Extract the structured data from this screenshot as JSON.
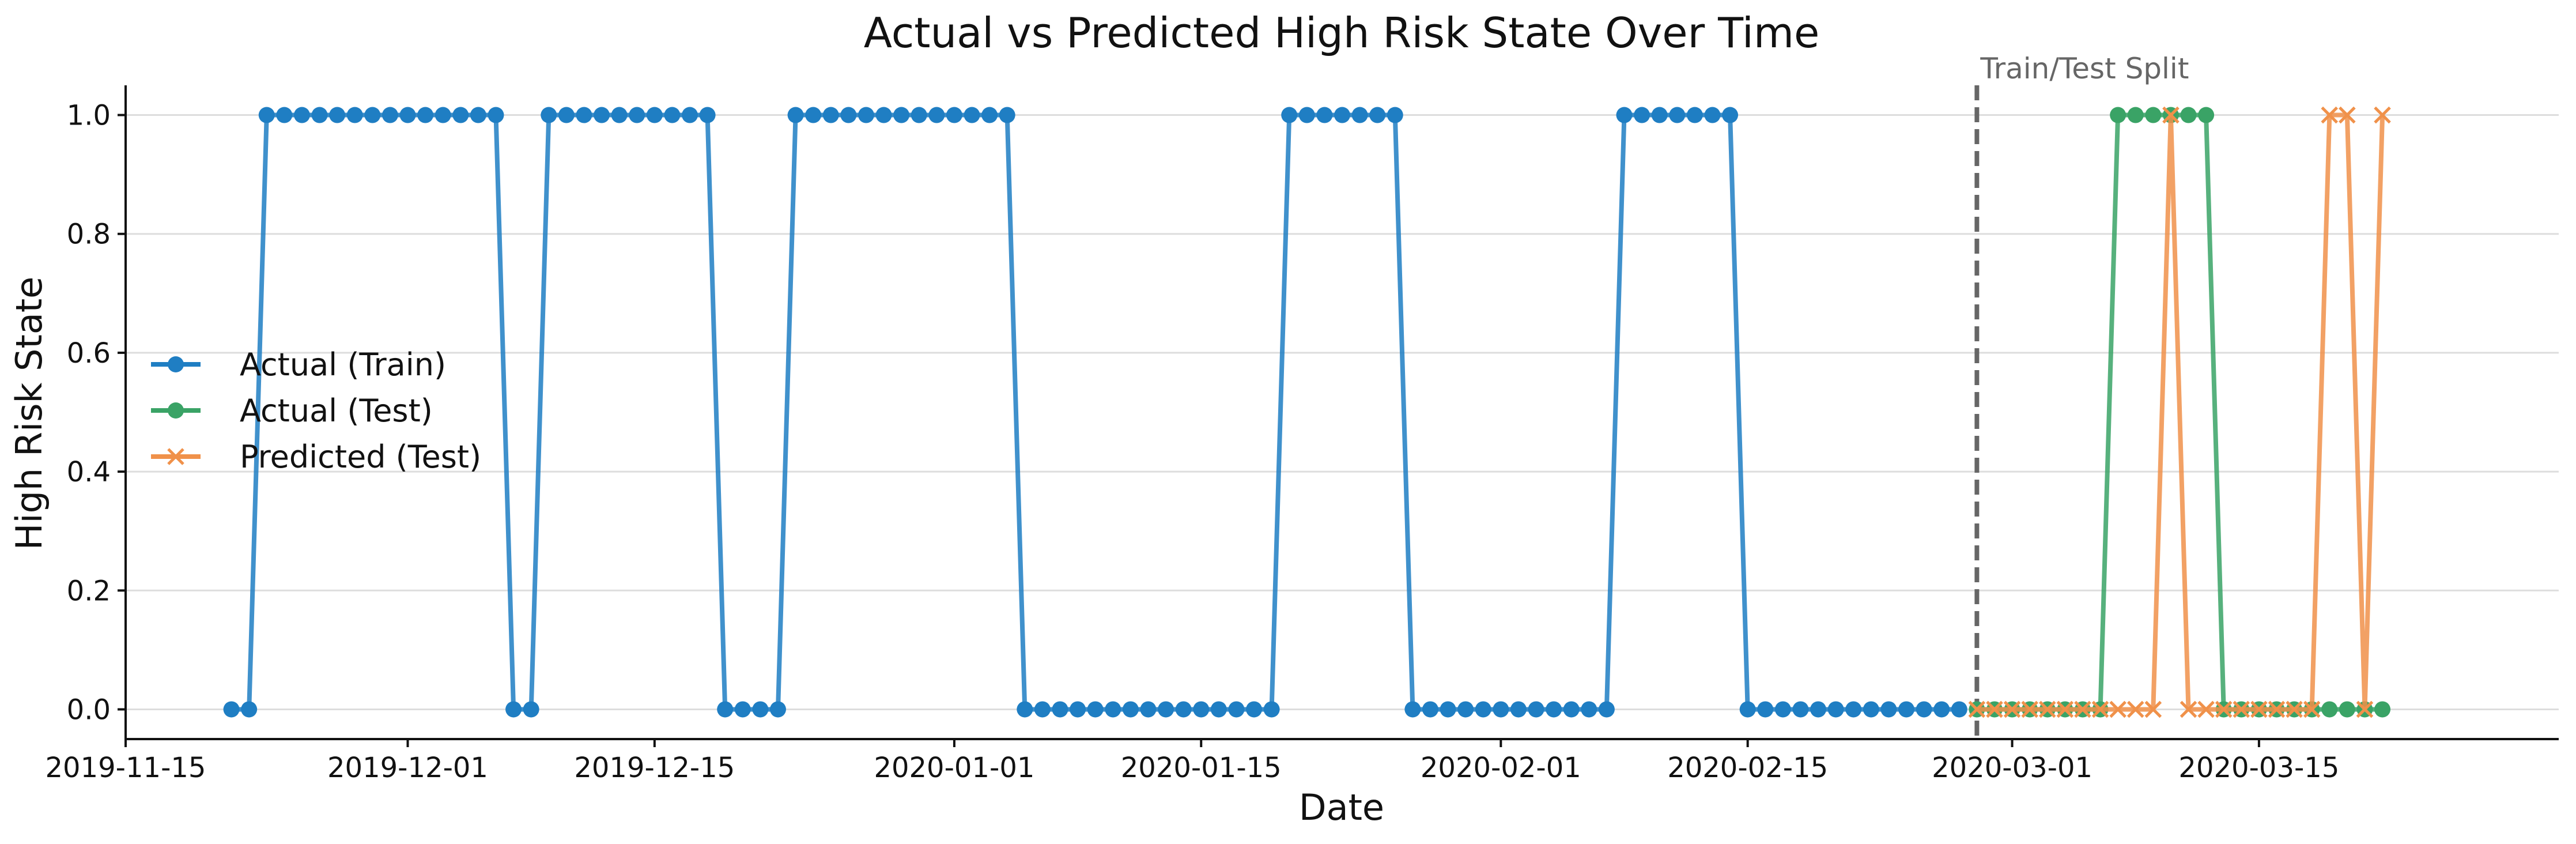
{
  "chart_data": {
    "type": "line",
    "title": "Actual vs Predicted High Risk State Over Time",
    "xlabel": "Date",
    "ylabel": "High Risk State",
    "x_axis_type": "date",
    "xlim": [
      "2019-11-15",
      "2020-04-01"
    ],
    "ylim": [
      -0.05,
      1.05
    ],
    "x_ticks": [
      "2019-11-15",
      "2019-12-01",
      "2019-12-15",
      "2020-01-01",
      "2020-01-15",
      "2020-02-01",
      "2020-02-15",
      "2020-03-01",
      "2020-03-15"
    ],
    "y_ticks": [
      0.0,
      0.2,
      0.4,
      0.6,
      0.8,
      1.0
    ],
    "y_tick_labels": [
      "0.0",
      "0.2",
      "0.4",
      "0.6",
      "0.8",
      "1.0"
    ],
    "grid": "horizontal",
    "legend_position": "center-left",
    "annotations": [
      {
        "type": "vertical-dashed-line",
        "x": "2020-02-28",
        "text": "Train/Test Split",
        "color": "#666666"
      }
    ],
    "series": [
      {
        "name": "Actual (Train)",
        "color": "#1f7ec3",
        "marker": "circle",
        "start": "2019-11-21",
        "values": [
          0,
          0,
          1,
          1,
          1,
          1,
          1,
          1,
          1,
          1,
          1,
          1,
          1,
          1,
          1,
          1,
          0,
          0,
          1,
          1,
          1,
          1,
          1,
          1,
          1,
          1,
          1,
          1,
          0,
          0,
          0,
          0,
          1,
          1,
          1,
          1,
          1,
          1,
          1,
          1,
          1,
          1,
          1,
          1,
          1,
          0,
          0,
          0,
          0,
          0,
          0,
          0,
          0,
          0,
          0,
          0,
          0,
          0,
          0,
          0,
          1,
          1,
          1,
          1,
          1,
          1,
          1,
          0,
          0,
          0,
          0,
          0,
          0,
          0,
          0,
          0,
          0,
          0,
          0,
          1,
          1,
          1,
          1,
          1,
          1,
          1,
          0,
          0,
          0,
          0,
          0,
          0,
          0,
          0,
          0,
          0,
          0,
          0,
          0
        ]
      },
      {
        "name": "Actual (Test)",
        "color": "#3aa366",
        "marker": "circle",
        "start": "2020-02-28",
        "values": [
          0,
          0,
          0,
          0,
          0,
          0,
          0,
          0,
          1,
          1,
          1,
          1,
          1,
          1,
          0,
          0,
          0,
          0,
          0,
          0,
          0,
          0,
          0,
          0
        ]
      },
      {
        "name": "Predicted (Test)",
        "color": "#f0914a",
        "marker": "x",
        "start": "2020-02-28",
        "values": [
          0,
          0,
          0,
          0,
          0,
          0,
          0,
          0,
          0,
          0,
          0,
          1,
          0,
          0,
          0,
          0,
          0,
          0,
          0,
          0,
          1,
          1,
          0,
          1
        ]
      }
    ]
  }
}
